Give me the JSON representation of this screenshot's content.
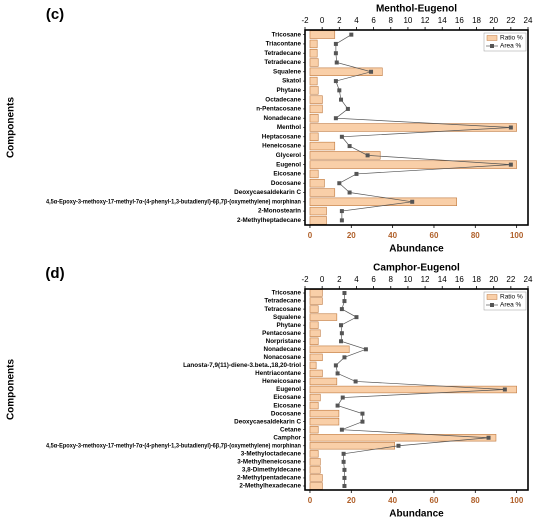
{
  "chart_data": [
    {
      "type": "bar",
      "panel_label": "(c)",
      "title": "Menthol-Eugenol",
      "xlabel": "Abundance",
      "ylabel": "Components",
      "categories": [
        "Tricosane",
        "Triacontane",
        "Tetradecane",
        "Tetradecane",
        "Squalene",
        "Skatol",
        "Phytane",
        "Octadecane",
        "n-Pentacosane",
        "Nonadecane",
        "Menthol",
        "Heptacosane",
        "Heneicosane",
        "Glycerol",
        "Eugenol",
        "Eicosane",
        "Docosane",
        "Deoxycaesaldekarin C",
        "4,5α-Epoxy-3-methoxy-17-methyl-7α-(4-phenyl-1,3-butadienyl)-6β,7β-(oxymethylene) morphinan",
        "2-Monostearin",
        "2-Methylheptadecane"
      ],
      "series": [
        {
          "name": "Ratio %",
          "color": "#f9cfa8",
          "values": [
            12,
            3.5,
            3.5,
            4,
            35,
            3.5,
            4,
            6,
            6,
            4,
            100,
            4,
            12,
            34,
            100,
            4,
            7,
            12,
            71,
            8,
            8
          ]
        },
        {
          "name": "Area %",
          "color": "#555555",
          "axis": "x2",
          "values": [
            3.4,
            1.6,
            1.6,
            1.7,
            5.7,
            1.6,
            2,
            2.2,
            3,
            1.6,
            22,
            2.3,
            3.2,
            5.3,
            22,
            4,
            2,
            3.2,
            10.5,
            2.3,
            2.3
          ]
        }
      ],
      "xlim": [
        -2.4,
        105.5
      ],
      "xticks": [
        0,
        20,
        40,
        60,
        80,
        100
      ],
      "x2lim": [
        -2,
        24
      ],
      "x2ticks": [
        -2,
        0,
        2,
        4,
        6,
        8,
        10,
        12,
        14,
        16,
        18,
        20,
        22,
        24
      ],
      "legend": "upper right"
    },
    {
      "type": "bar",
      "panel_label": "(d)",
      "title": "Camphor-Eugenol",
      "xlabel": "Abundance",
      "ylabel": "Components",
      "categories": [
        "Tricosane",
        "Tetradecane",
        "Tetracosane",
        "Squalene",
        "Phytane",
        "Pentacosane",
        "Norpristane",
        "Nonadecane",
        "Nonacosane",
        "Lanosta-7,9(11)-diene-3.beta.,18,20-triol",
        "Hentriacontane",
        "Heneicosane",
        "Eugenol",
        "Eicosane",
        "Eicosane",
        "Docosane",
        "Deoxycaesaldekarin C",
        "Cetane",
        "Camphor",
        "4,5α-Epoxy-3-methoxy-17-methyl-7α-(4-phenyl-1,3-butadienyl)-6β,7β-(oxymethylene) morphinan",
        "3-Methyloctadecane",
        "3-Methylheneicosane",
        "3,8-Dimethyldecane",
        "2-Methylpentadecane",
        "2-Methylhexadecane"
      ],
      "series": [
        {
          "name": "Ratio %",
          "color": "#f9cfa8",
          "values": [
            6,
            6,
            4,
            13,
            4,
            5,
            4,
            19,
            6,
            3,
            6,
            13,
            100,
            5,
            4,
            14,
            14,
            4,
            90,
            41,
            4,
            5,
            5,
            6,
            6
          ]
        },
        {
          "name": "Area %",
          "color": "#555555",
          "axis": "x2",
          "values": [
            2.6,
            2.6,
            2.3,
            4,
            2.2,
            2.3,
            2.2,
            5.1,
            2.6,
            1.6,
            1.8,
            3.9,
            21.3,
            2.4,
            1.8,
            4.7,
            4.7,
            2.3,
            19.4,
            8.9,
            2.5,
            2.5,
            2.6,
            2.6,
            2.6
          ]
        }
      ],
      "xlim": [
        -2.4,
        105.5
      ],
      "xticks": [
        0,
        20,
        40,
        60,
        80,
        100
      ],
      "x2lim": [
        -2,
        24
      ],
      "x2ticks": [
        -2,
        0,
        2,
        4,
        6,
        8,
        10,
        12,
        14,
        16,
        18,
        20,
        22,
        24
      ],
      "legend": "upper right"
    }
  ]
}
